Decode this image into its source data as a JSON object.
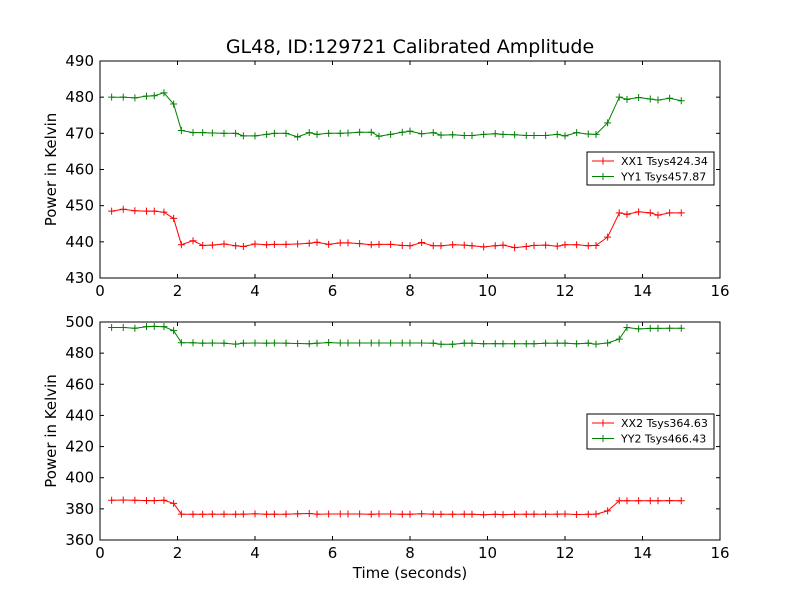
{
  "chart_data": {
    "title": "GL48, ID:129721 Calibrated Amplitude",
    "xlabel": "Time (seconds)",
    "panels": [
      {
        "type": "line",
        "ylabel": "Power in Kelvin",
        "xlim": [
          0,
          16
        ],
        "ylim": [
          430,
          490
        ],
        "xticks": [
          "0",
          "2",
          "4",
          "6",
          "8",
          "10",
          "12",
          "14",
          "16"
        ],
        "yticks": [
          "430",
          "440",
          "450",
          "460",
          "470",
          "480",
          "490"
        ],
        "legend_position": "right",
        "x": [
          0.3,
          0.6,
          0.9,
          1.2,
          1.4,
          1.65,
          1.9,
          2.1,
          2.4,
          2.65,
          2.9,
          3.2,
          3.5,
          3.7,
          4.0,
          4.3,
          4.5,
          4.8,
          5.1,
          5.4,
          5.6,
          5.9,
          6.2,
          6.4,
          6.7,
          7.0,
          7.2,
          7.5,
          7.8,
          8.0,
          8.3,
          8.6,
          8.8,
          9.1,
          9.4,
          9.6,
          9.9,
          10.2,
          10.4,
          10.7,
          11.0,
          11.2,
          11.5,
          11.8,
          12.0,
          12.3,
          12.6,
          12.8,
          13.1,
          13.4,
          13.6,
          13.9,
          14.2,
          14.4,
          14.7,
          15.0
        ],
        "series": [
          {
            "name": "XX1 Tsys424.34",
            "color": "#ff0000",
            "values": [
              448.5,
              449.0,
              448.6,
              448.5,
              448.5,
              448.2,
              446.5,
              439.2,
              440.3,
              439.0,
              439.1,
              439.4,
              438.9,
              438.7,
              439.4,
              439.2,
              439.3,
              439.3,
              439.4,
              439.6,
              439.9,
              439.3,
              439.7,
              439.7,
              439.5,
              439.2,
              439.3,
              439.3,
              439.0,
              438.9,
              439.8,
              438.9,
              438.9,
              439.2,
              439.1,
              438.9,
              438.6,
              438.9,
              439.1,
              438.4,
              438.7,
              439.0,
              439.1,
              438.8,
              439.2,
              439.2,
              438.9,
              439.0,
              441.3,
              448.0,
              447.6,
              448.3,
              448.0,
              447.4,
              448.0,
              448.0
            ]
          },
          {
            "name": "YY1 Tsys457.87",
            "color": "#008000",
            "values": [
              480.0,
              480.0,
              479.8,
              480.3,
              480.4,
              481.2,
              478.1,
              470.8,
              470.2,
              470.2,
              470.1,
              470.0,
              470.0,
              469.3,
              469.3,
              469.7,
              470.0,
              470.0,
              469.0,
              470.2,
              469.7,
              470.0,
              470.0,
              470.1,
              470.3,
              470.3,
              469.2,
              469.7,
              470.3,
              470.6,
              469.9,
              470.2,
              469.5,
              469.6,
              469.4,
              469.4,
              469.7,
              469.9,
              469.7,
              469.6,
              469.4,
              469.4,
              469.4,
              469.7,
              469.3,
              470.2,
              469.8,
              469.7,
              472.9,
              480.0,
              479.4,
              479.9,
              479.5,
              479.2,
              479.7,
              479.0
            ]
          }
        ]
      },
      {
        "type": "line",
        "ylabel": "Power in Kelvin",
        "xlabel": "Time (seconds)",
        "xlim": [
          0,
          16
        ],
        "ylim": [
          360,
          500
        ],
        "xticks": [
          "0",
          "2",
          "4",
          "6",
          "8",
          "10",
          "12",
          "14",
          "16"
        ],
        "yticks": [
          "360",
          "380",
          "400",
          "420",
          "440",
          "460",
          "480",
          "500"
        ],
        "legend_position": "right",
        "x": [
          0.3,
          0.6,
          0.9,
          1.2,
          1.4,
          1.65,
          1.9,
          2.1,
          2.4,
          2.65,
          2.9,
          3.2,
          3.5,
          3.7,
          4.0,
          4.3,
          4.5,
          4.8,
          5.1,
          5.4,
          5.6,
          5.9,
          6.2,
          6.4,
          6.7,
          7.0,
          7.2,
          7.5,
          7.8,
          8.0,
          8.3,
          8.6,
          8.8,
          9.1,
          9.4,
          9.6,
          9.9,
          10.2,
          10.4,
          10.7,
          11.0,
          11.2,
          11.5,
          11.8,
          12.0,
          12.3,
          12.6,
          12.8,
          13.1,
          13.4,
          13.6,
          13.9,
          14.2,
          14.4,
          14.7,
          15.0
        ],
        "series": [
          {
            "name": "XX2 Tsys364.63",
            "color": "#ff0000",
            "values": [
              385.5,
              385.7,
              385.5,
              385.3,
              385.3,
              385.5,
              383.5,
              376.6,
              376.5,
              376.5,
              376.6,
              376.6,
              376.5,
              376.6,
              376.8,
              376.5,
              376.6,
              376.6,
              376.8,
              377.0,
              376.6,
              376.7,
              376.7,
              376.7,
              376.7,
              376.5,
              376.7,
              376.7,
              376.5,
              376.5,
              376.8,
              376.6,
              376.5,
              376.5,
              376.6,
              376.5,
              376.2,
              376.5,
              376.3,
              376.5,
              376.5,
              376.6,
              376.6,
              376.6,
              376.7,
              376.4,
              376.5,
              376.6,
              378.7,
              385.2,
              385.2,
              385.2,
              385.2,
              385.2,
              385.3,
              385.2
            ]
          },
          {
            "name": "YY2 Tsys466.43",
            "color": "#008000",
            "values": [
              496.5,
              496.5,
              496.0,
              497.0,
              497.2,
              497.0,
              494.5,
              486.7,
              486.7,
              486.4,
              486.5,
              486.4,
              485.8,
              486.4,
              486.5,
              486.4,
              486.5,
              486.4,
              486.2,
              486.0,
              486.4,
              486.8,
              486.5,
              486.5,
              486.5,
              486.5,
              486.5,
              486.5,
              486.5,
              486.5,
              486.5,
              486.4,
              485.7,
              485.7,
              486.4,
              486.4,
              486.0,
              486.1,
              486.0,
              486.0,
              486.0,
              486.0,
              486.4,
              486.4,
              486.4,
              486.0,
              486.4,
              485.8,
              486.5,
              489.0,
              496.5,
              495.6,
              495.9,
              495.9,
              496.0,
              496.0
            ]
          }
        ]
      }
    ]
  }
}
